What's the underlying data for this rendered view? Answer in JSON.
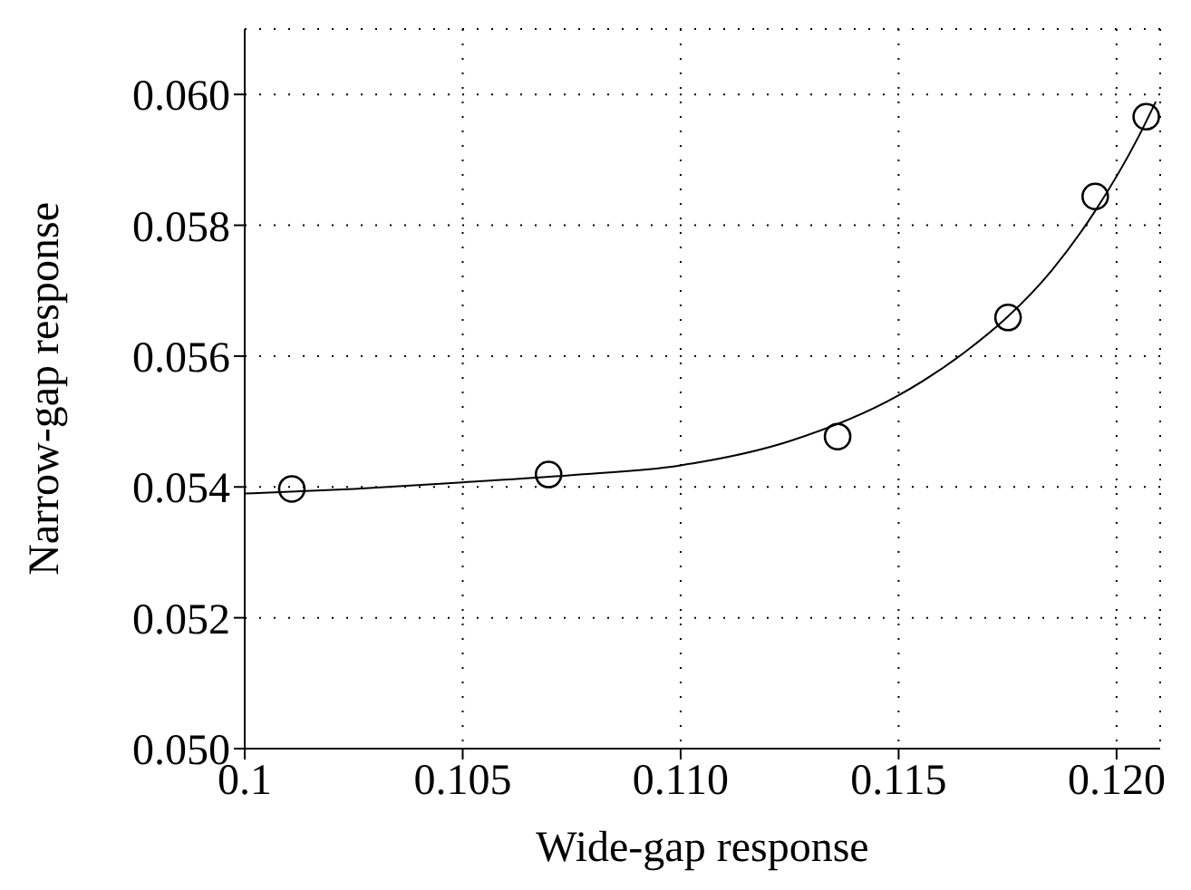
{
  "chart_data": {
    "type": "scatter",
    "xlabel": "Wide-gap response",
    "ylabel": "Narrow-gap response",
    "xlim": [
      0.1,
      0.121
    ],
    "ylim": [
      0.05,
      0.061
    ],
    "xticks": [
      0.1,
      0.105,
      {
        "value": 0.11,
        "label": "0.110"
      },
      0.115,
      {
        "value": 0.12,
        "label": "0.120"
      }
    ],
    "yticks": [
      {
        "value": 0.05,
        "label": "0.050"
      },
      0.052,
      0.054,
      0.056,
      0.058,
      {
        "value": 0.06,
        "label": "0.060"
      }
    ],
    "grid": true,
    "marker": "circle",
    "series": [
      {
        "color": "#000000",
        "x": [
          0.10108,
          0.10697,
          0.1136,
          0.11751,
          0.11951,
          0.12068
        ],
        "values": [
          0.05397,
          0.05419,
          0.05477,
          0.05659,
          0.05844,
          0.05966
        ]
      },
      {
        "type": "line",
        "color": "#000000",
        "marker": "none",
        "line_style": "solid",
        "x": [
          0.1,
          0.1025,
          0.105,
          0.1075,
          0.11,
          0.1125,
          0.115,
          0.1165,
          0.1175,
          0.1185,
          0.1195,
          0.1205,
          0.1209
        ],
        "values": [
          0.0539,
          0.05397,
          0.05407,
          0.05418,
          0.05433,
          0.0547,
          0.0554,
          0.05605,
          0.0566,
          0.0573,
          0.05821,
          0.05935,
          0.05989
        ]
      }
    ]
  }
}
